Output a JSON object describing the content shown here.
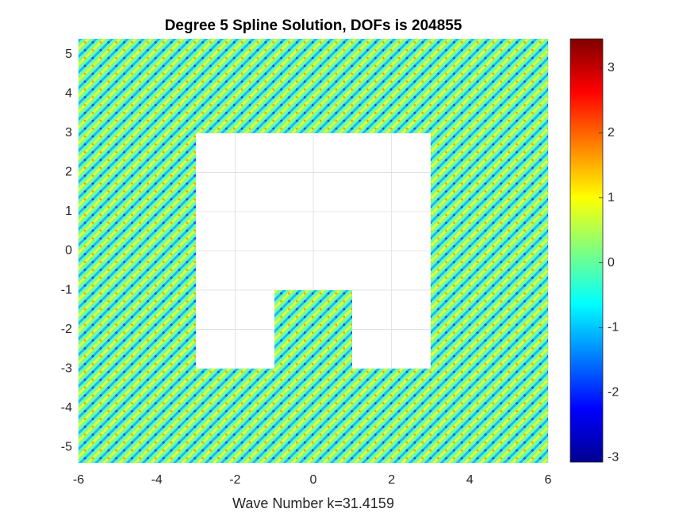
{
  "chart_data": {
    "type": "field",
    "title": "Degree 5 Spline Solution, DOFs is 204855",
    "xlabel": "Wave Number k=31.4159",
    "xlim": [
      -6,
      6
    ],
    "ylim": [
      -5.4,
      5.4
    ],
    "xticks": [
      -6,
      -4,
      -2,
      0,
      2,
      4,
      6
    ],
    "yticks": [
      -5,
      -4,
      -3,
      -2,
      -1,
      0,
      1,
      2,
      3,
      4,
      5
    ],
    "grid": true,
    "colorbar": {
      "clim": [
        -3.07,
        3.45
      ],
      "ticks": [
        -3,
        -2,
        -1,
        0,
        1,
        2,
        3
      ],
      "colormap": "jet"
    }
  }
}
